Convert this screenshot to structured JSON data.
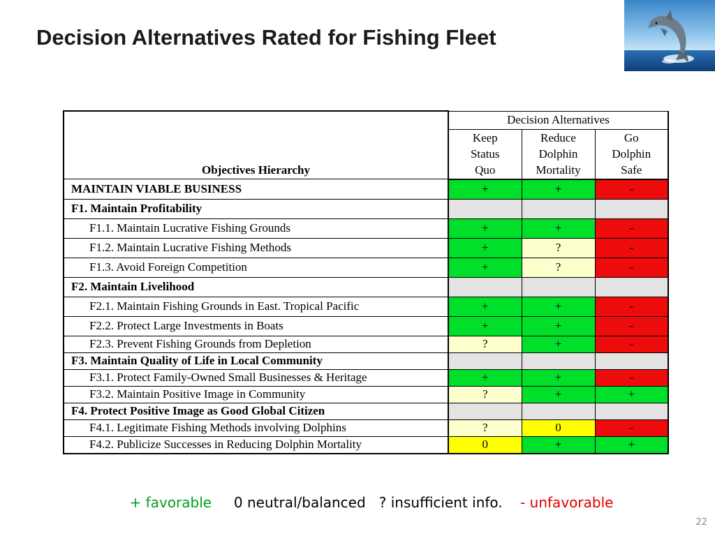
{
  "slide": {
    "title": "Decision Alternatives Rated for Fishing Fleet",
    "page_number": "22",
    "image_icon": "dolphin-jumping-photo"
  },
  "table": {
    "decision_header": "Decision Alternatives",
    "objectives_header": "Objectives Hierarchy",
    "alternatives": [
      {
        "lines": [
          "Keep",
          "Status",
          "Quo"
        ]
      },
      {
        "lines": [
          "Reduce",
          "Dolphin",
          "Mortality"
        ]
      },
      {
        "lines": [
          "Go",
          "Dolphin",
          "Safe"
        ]
      }
    ],
    "rows": [
      {
        "label": "MAINTAIN VIABLE BUSINESS",
        "level": "top",
        "ratings": [
          "+",
          "+",
          "-"
        ]
      },
      {
        "label": "F1. Maintain Profitability",
        "level": "group",
        "ratings": [
          "",
          "",
          ""
        ]
      },
      {
        "label": "F1.1. Maintain Lucrative Fishing Grounds",
        "level": "sub",
        "ratings": [
          "+",
          "+",
          "-"
        ]
      },
      {
        "label": "F1.2. Maintain Lucrative Fishing Methods",
        "level": "sub",
        "ratings": [
          "+",
          "?",
          "-"
        ]
      },
      {
        "label": "F1.3. Avoid Foreign Competition",
        "level": "sub",
        "ratings": [
          "+",
          "?",
          "-"
        ]
      },
      {
        "label": "F2. Maintain Livelihood",
        "level": "group",
        "ratings": [
          "",
          "",
          ""
        ]
      },
      {
        "label": "F2.1. Maintain Fishing Grounds in East. Tropical Pacific",
        "level": "sub",
        "ratings": [
          "+",
          "+",
          "-"
        ]
      },
      {
        "label": "F2.2. Protect Large Investments in Boats",
        "level": "sub",
        "ratings": [
          "+",
          "+",
          "-"
        ]
      },
      {
        "label": "F2.3. Prevent Fishing Grounds from Depletion",
        "level": "sub",
        "ratings": [
          "?",
          "+",
          "-"
        ]
      },
      {
        "label": "F3. Maintain Quality of Life in Local Community",
        "level": "group",
        "ratings": [
          "",
          "",
          ""
        ]
      },
      {
        "label": "F3.1. Protect Family-Owned Small Businesses & Heritage",
        "level": "sub",
        "ratings": [
          "+",
          "+",
          "-"
        ]
      },
      {
        "label": "F3.2. Maintain Positive Image in Community",
        "level": "sub",
        "ratings": [
          "?",
          "+",
          "+"
        ]
      },
      {
        "label": "F4. Protect Positive Image as Good Global Citizen",
        "level": "group",
        "ratings": [
          "",
          "",
          ""
        ]
      },
      {
        "label": "F4.1. Legitimate Fishing Methods involving Dolphins",
        "level": "sub",
        "ratings": [
          "?",
          "0",
          "-"
        ]
      },
      {
        "label": "F4.2. Publicize Successes in Reducing Dolphin Mortality",
        "level": "sub",
        "ratings": [
          "0",
          "+",
          "+"
        ]
      }
    ]
  },
  "legend": {
    "favorable": "+ favorable",
    "neutral": "0 neutral/balanced",
    "insufficient": "? insufficient info.",
    "unfavorable": "- unfavorable"
  },
  "colors": {
    "favorable": "#00e02a",
    "unfavorable": "#ee0b0b",
    "insufficient": "#fdffcc",
    "neutral": "#ffff00",
    "empty": "#e3e3e3"
  }
}
